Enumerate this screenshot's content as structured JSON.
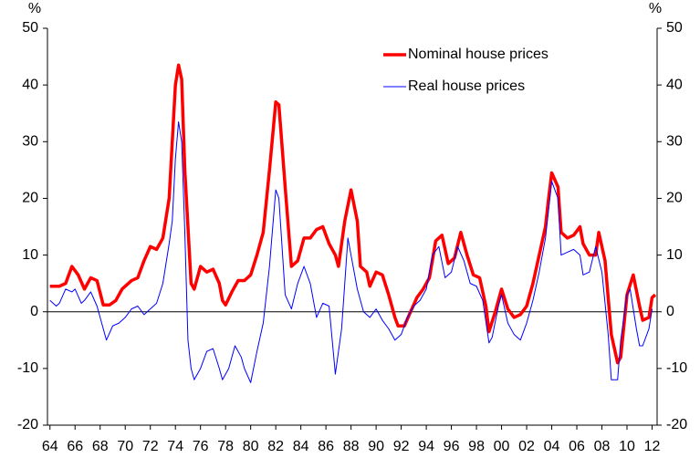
{
  "chart_data": {
    "type": "line",
    "y_unit": "%",
    "y2_unit": "%",
    "xlim": [
      1963.8,
      2012.4
    ],
    "xticks": [
      {
        "value": 1964,
        "label": "64"
      },
      {
        "value": 1966,
        "label": "66"
      },
      {
        "value": 1968,
        "label": "68"
      },
      {
        "value": 1970,
        "label": "70"
      },
      {
        "value": 1972,
        "label": "72"
      },
      {
        "value": 1974,
        "label": "74"
      },
      {
        "value": 1976,
        "label": "76"
      },
      {
        "value": 1978,
        "label": "78"
      },
      {
        "value": 1980,
        "label": "80"
      },
      {
        "value": 1982,
        "label": "82"
      },
      {
        "value": 1984,
        "label": "84"
      },
      {
        "value": 1986,
        "label": "86"
      },
      {
        "value": 1988,
        "label": "88"
      },
      {
        "value": 1990,
        "label": "90"
      },
      {
        "value": 1992,
        "label": "92"
      },
      {
        "value": 1994,
        "label": "94"
      },
      {
        "value": 1996,
        "label": "96"
      },
      {
        "value": 1998,
        "label": "98"
      },
      {
        "value": 2000,
        "label": "00"
      },
      {
        "value": 2002,
        "label": "02"
      },
      {
        "value": 2004,
        "label": "04"
      },
      {
        "value": 2006,
        "label": "06"
      },
      {
        "value": 2008,
        "label": "08"
      },
      {
        "value": 2010,
        "label": "10"
      },
      {
        "value": 2012,
        "label": "12"
      }
    ],
    "ylim": [
      -20,
      50
    ],
    "yticks": [
      -20,
      -10,
      0,
      10,
      20,
      30,
      40,
      50
    ],
    "y2lim": [
      -20,
      50
    ],
    "y2ticks": [
      -20,
      -10,
      0,
      10,
      20,
      30,
      40,
      50
    ],
    "legend": "top-right",
    "series": [
      {
        "name": "Nominal house prices",
        "color": "#ff0000",
        "width": 3.5,
        "x": [
          1964,
          1964.75,
          1965.25,
          1965.75,
          1966.25,
          1966.75,
          1967.25,
          1967.75,
          1968.25,
          1968.75,
          1969.25,
          1969.75,
          1970.5,
          1971,
          1971.5,
          1972,
          1972.5,
          1973,
          1973.5,
          1973.75,
          1974,
          1974.25,
          1974.5,
          1974.75,
          1975.25,
          1975.5,
          1976,
          1976.5,
          1977,
          1977.5,
          1977.75,
          1978,
          1978.5,
          1979,
          1979.5,
          1980,
          1980.5,
          1981,
          1981.5,
          1982,
          1982.25,
          1982.75,
          1983.25,
          1983.75,
          1984.25,
          1984.75,
          1985.25,
          1985.75,
          1986.25,
          1986.75,
          1987,
          1987.5,
          1988,
          1988.5,
          1988.75,
          1989.25,
          1989.5,
          1990,
          1990.5,
          1991,
          1991.5,
          1991.75,
          1992.25,
          1992.75,
          1993.25,
          1993.75,
          1994.25,
          1994.75,
          1995.25,
          1995.75,
          1996.25,
          1996.75,
          1997.25,
          1997.75,
          1998.25,
          1998.75,
          1999,
          1999.5,
          2000,
          2000.5,
          2001,
          2001.5,
          2002,
          2002.5,
          2003,
          2003.5,
          2003.75,
          2004,
          2004.5,
          2004.75,
          2005.25,
          2005.75,
          2006.25,
          2006.5,
          2007,
          2007.5,
          2007.75,
          2008.25,
          2008.75,
          2009.25,
          2009.5,
          2010,
          2010.5,
          2011,
          2011.25,
          2011.75,
          2012,
          2012.25
        ],
        "values": [
          4.5,
          4.5,
          5,
          8,
          6.5,
          4,
          6,
          5.5,
          1.2,
          1.2,
          2,
          4,
          5.5,
          6,
          9,
          11.5,
          11,
          13,
          20,
          30,
          40,
          43.5,
          41,
          25,
          5,
          4,
          8,
          7,
          7.5,
          5,
          2,
          1.2,
          3.5,
          5.5,
          5.5,
          6.5,
          10,
          14,
          25,
          37,
          36.5,
          22,
          8,
          9,
          13,
          13,
          14.5,
          15,
          12,
          10,
          8,
          16,
          21.5,
          16,
          8,
          7,
          4.5,
          7,
          6.5,
          3,
          -1,
          -2.5,
          -2.5,
          0,
          2.5,
          4,
          6,
          12.5,
          13.5,
          8.5,
          9.5,
          14,
          10,
          6.5,
          6,
          1,
          -3.5,
          0,
          4,
          0.5,
          -1,
          -0.5,
          1,
          5,
          10,
          15,
          20,
          24.5,
          22,
          14,
          13,
          13.5,
          15,
          12,
          10,
          10,
          14,
          9,
          -4,
          -9,
          -8,
          3,
          6.5,
          1,
          -1.5,
          -1,
          2.5,
          3
        ]
      },
      {
        "name": "Real house prices",
        "color": "#0000ff",
        "width": 1,
        "x": [
          1964,
          1964.5,
          1964.75,
          1965.25,
          1965.75,
          1966,
          1966.5,
          1966.75,
          1967.25,
          1967.75,
          1968.25,
          1968.5,
          1969,
          1969.5,
          1970,
          1970.5,
          1971,
          1971.5,
          1972,
          1972.5,
          1973,
          1973.5,
          1973.75,
          1974,
          1974.25,
          1974.5,
          1974.75,
          1975,
          1975.25,
          1975.5,
          1976,
          1976.5,
          1977,
          1977.5,
          1977.75,
          1978.25,
          1978.75,
          1979.25,
          1979.5,
          1980,
          1980.5,
          1981,
          1981.5,
          1982,
          1982.25,
          1982.75,
          1983.25,
          1983.75,
          1984.25,
          1984.75,
          1985.25,
          1985.75,
          1986.25,
          1986.75,
          1987.25,
          1987.75,
          1988,
          1988.5,
          1989,
          1989.5,
          1990,
          1990.5,
          1991,
          1991.5,
          1992,
          1992.5,
          1993,
          1993.5,
          1994,
          1994.5,
          1995,
          1995.5,
          1996,
          1996.5,
          1997,
          1997.5,
          1998,
          1998.5,
          1999,
          1999.25,
          1999.75,
          2000,
          2000.5,
          2001,
          2001.5,
          2002,
          2002.5,
          2003,
          2003.5,
          2004,
          2004.5,
          2004.75,
          2005.25,
          2005.75,
          2006.25,
          2006.5,
          2007,
          2007.5,
          2008,
          2008.5,
          2008.75,
          2009.25,
          2009.5,
          2010,
          2010.25,
          2010.75,
          2011,
          2011.25,
          2011.75,
          2012
        ],
        "values": [
          2,
          1,
          1.5,
          4,
          3.5,
          4,
          1.5,
          2,
          3.5,
          1,
          -3,
          -5,
          -2.5,
          -2,
          -1,
          0.5,
          1,
          -0.5,
          0.5,
          1.5,
          5,
          12,
          16,
          27,
          33.5,
          30,
          14,
          -5,
          -10,
          -12,
          -10,
          -7,
          -6.5,
          -10,
          -12,
          -10,
          -6,
          -8,
          -10,
          -12.5,
          -7,
          -2,
          8,
          21.5,
          20,
          3,
          0.5,
          5,
          8,
          5,
          -1,
          1.5,
          1,
          -11,
          -3,
          13,
          10,
          4,
          0,
          -1,
          0.5,
          -1.5,
          -3,
          -5,
          -4,
          -1,
          1,
          2,
          4,
          10,
          11.5,
          6,
          7,
          11.5,
          9,
          5,
          4.5,
          2,
          -5.5,
          -4.5,
          1,
          3,
          -2,
          -4,
          -5,
          -2,
          2,
          7,
          13,
          23,
          20,
          10,
          10.5,
          11,
          10,
          6.5,
          7,
          11.5,
          7,
          -4,
          -12,
          -12,
          -5,
          3,
          4,
          -3,
          -6,
          -6,
          -3,
          0.5
        ]
      }
    ]
  }
}
